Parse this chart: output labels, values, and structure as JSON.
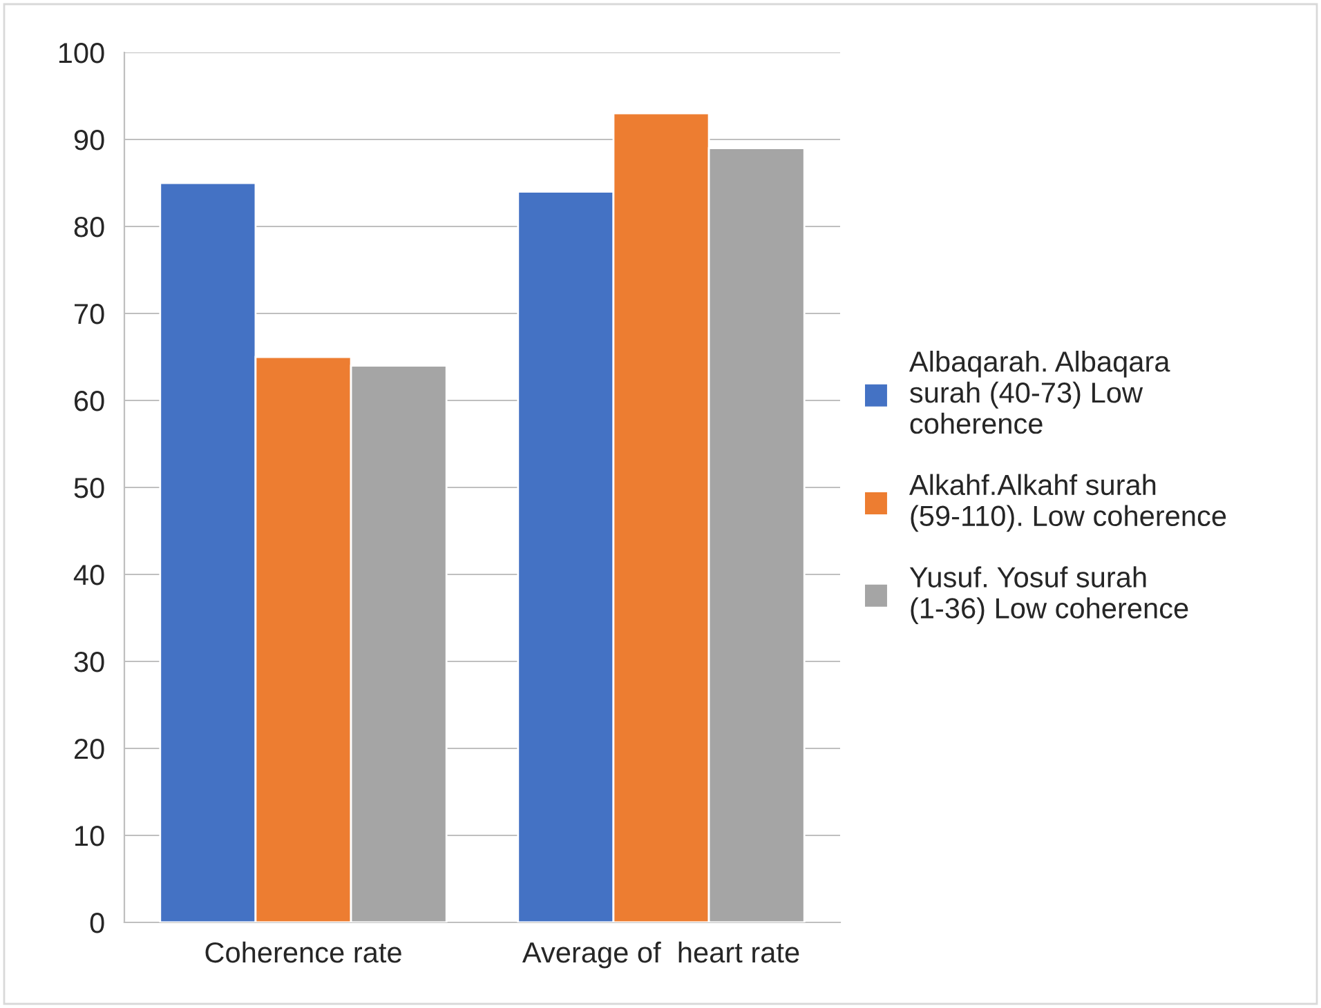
{
  "chart_data": {
    "type": "bar",
    "categories": [
      "Coherence rate",
      "Average of  heart rate"
    ],
    "series": [
      {
        "name": "Albaqarah. Albaqara surah (40-73) Low coherence",
        "color": "#4472c4",
        "values": [
          85,
          84
        ]
      },
      {
        "name": "Alkahf.Alkahf surah (59-110). Low coherence",
        "color": "#ed7d31",
        "values": [
          65,
          93
        ]
      },
      {
        "name": "Yusuf. Yosuf surah (1-36) Low coherence",
        "color": "#a5a5a5",
        "values": [
          64,
          89
        ]
      }
    ],
    "ylim": [
      0,
      100
    ],
    "yticks": [
      0,
      10,
      20,
      30,
      40,
      50,
      60,
      70,
      80,
      90,
      100
    ],
    "grid": "y",
    "legend": "right"
  }
}
